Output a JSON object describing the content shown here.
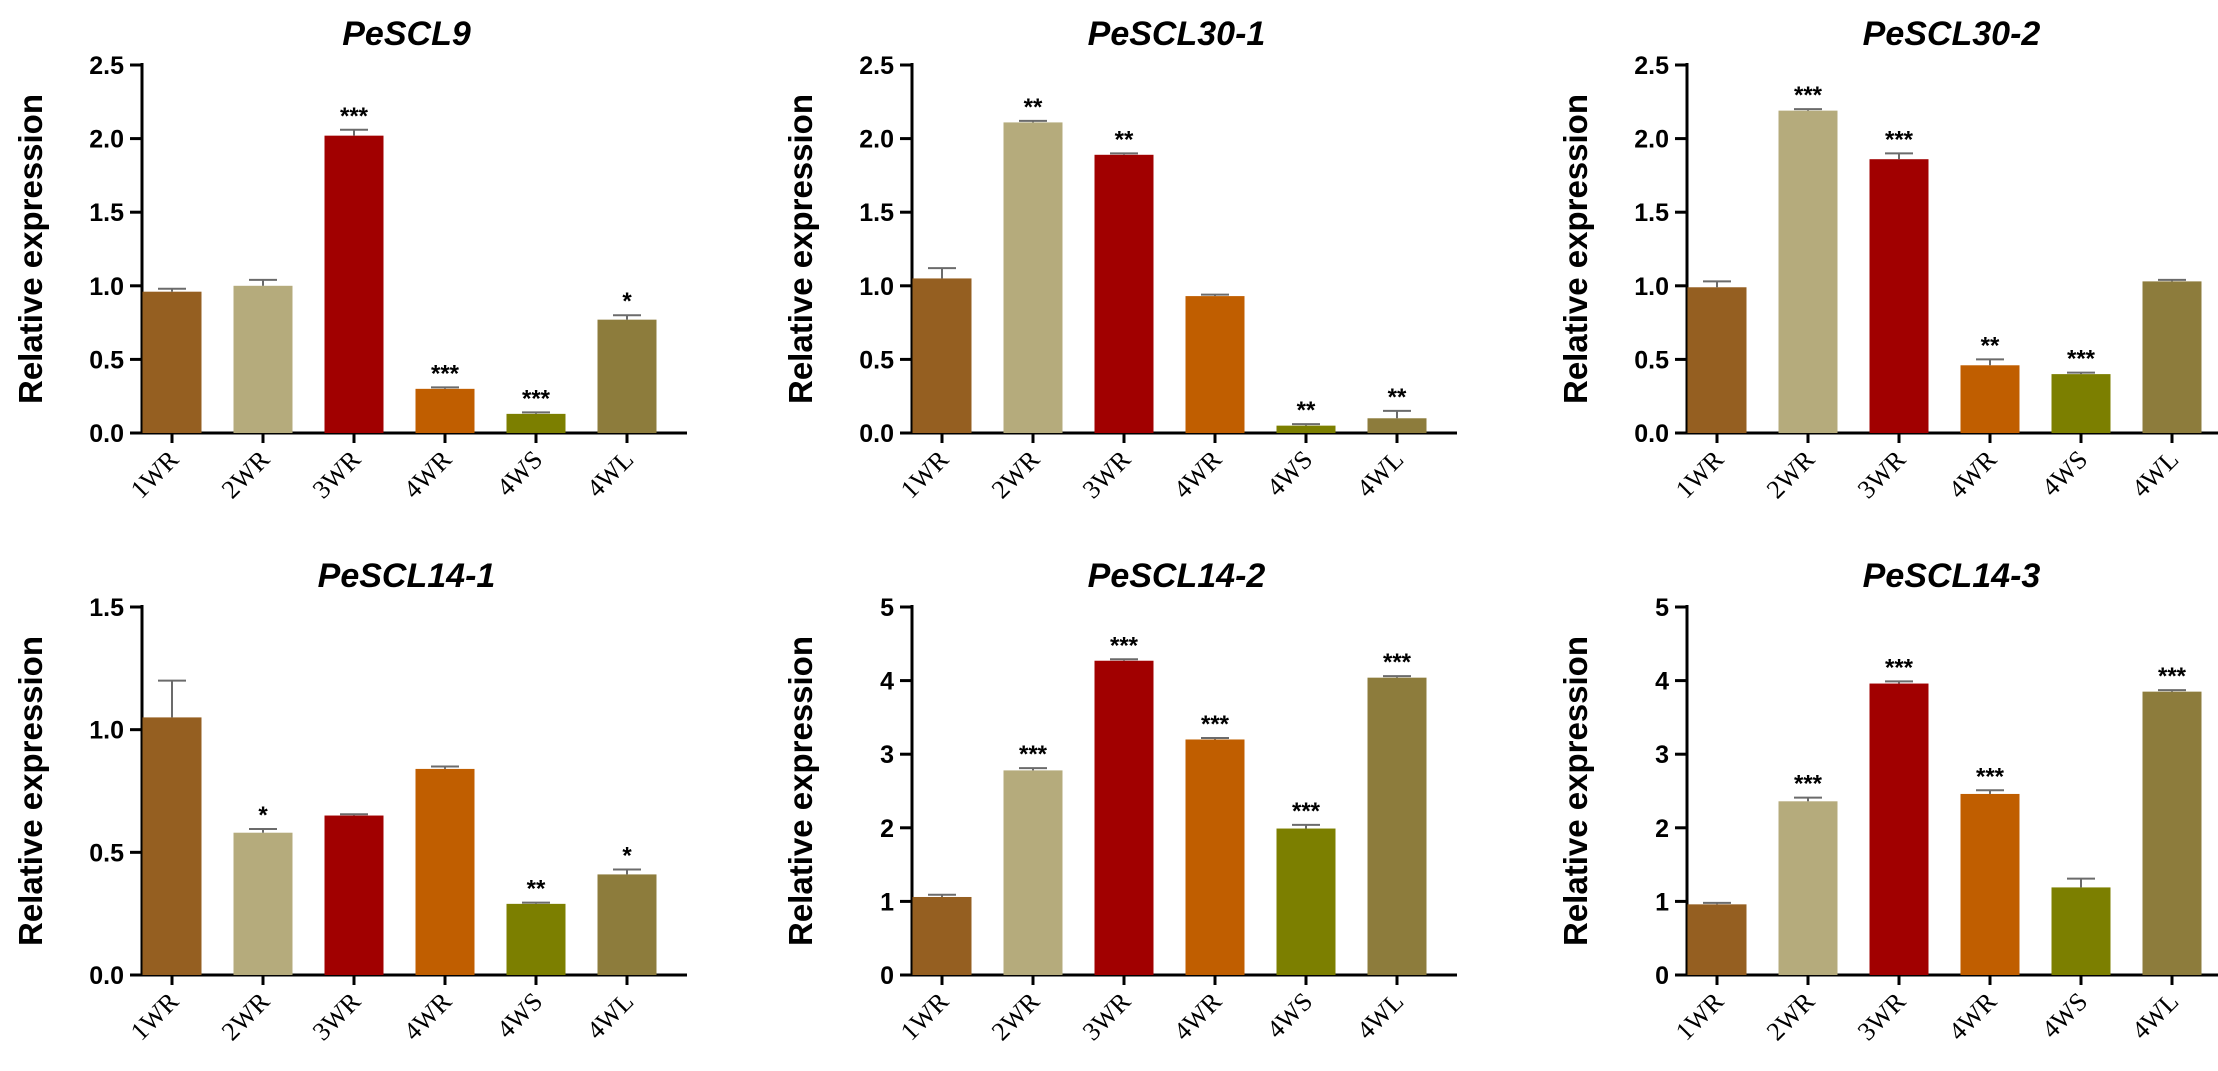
{
  "chart_data": [
    {
      "type": "bar",
      "title": "PeSCL9",
      "ylabel": "Relative expression",
      "xlabel": "",
      "ylim": [
        0,
        2.5
      ],
      "yticks": [
        "0.0",
        "0.5",
        "1.0",
        "1.5",
        "2.0",
        "2.5"
      ],
      "categories": [
        "1WR",
        "2WR",
        "3WR",
        "4WR",
        "4WS",
        "4WL"
      ],
      "values": [
        0.96,
        1.0,
        2.02,
        0.3,
        0.13,
        0.77
      ],
      "errors": [
        0.02,
        0.04,
        0.04,
        0.01,
        0.01,
        0.03
      ],
      "significance": [
        "",
        "",
        "***",
        "***",
        "***",
        "*"
      ]
    },
    {
      "type": "bar",
      "title": "PeSCL30-1",
      "ylabel": "Relative expression",
      "xlabel": "",
      "ylim": [
        0,
        2.5
      ],
      "yticks": [
        "0.0",
        "0.5",
        "1.0",
        "1.5",
        "2.0",
        "2.5"
      ],
      "categories": [
        "1WR",
        "2WR",
        "3WR",
        "4WR",
        "4WS",
        "4WL"
      ],
      "values": [
        1.05,
        2.11,
        1.89,
        0.93,
        0.05,
        0.1
      ],
      "errors": [
        0.07,
        0.01,
        0.01,
        0.01,
        0.01,
        0.05
      ],
      "significance": [
        "",
        "**",
        "**",
        "",
        "**",
        "**"
      ]
    },
    {
      "type": "bar",
      "title": "PeSCL30-2",
      "ylabel": "Relative expression",
      "xlabel": "",
      "ylim": [
        0,
        2.5
      ],
      "yticks": [
        "0.0",
        "0.5",
        "1.0",
        "1.5",
        "2.0",
        "2.5"
      ],
      "categories": [
        "1WR",
        "2WR",
        "3WR",
        "4WR",
        "4WS",
        "4WL"
      ],
      "values": [
        0.99,
        2.19,
        1.86,
        0.46,
        0.4,
        1.03
      ],
      "errors": [
        0.04,
        0.01,
        0.04,
        0.04,
        0.01,
        0.01
      ],
      "significance": [
        "",
        "***",
        "***",
        "**",
        "***",
        ""
      ]
    },
    {
      "type": "bar",
      "title": "PeSCL14-1",
      "ylabel": "Relative expression",
      "xlabel": "",
      "ylim": [
        0,
        1.5
      ],
      "yticks": [
        "0.0",
        "0.5",
        "1.0",
        "1.5"
      ],
      "categories": [
        "1WR",
        "2WR",
        "3WR",
        "4WR",
        "4WS",
        "4WL"
      ],
      "values": [
        1.05,
        0.58,
        0.65,
        0.84,
        0.29,
        0.41
      ],
      "errors": [
        0.15,
        0.015,
        0.005,
        0.01,
        0.005,
        0.02
      ],
      "significance": [
        "",
        "*",
        "",
        "",
        "**",
        "*"
      ]
    },
    {
      "type": "bar",
      "title": "PeSCL14-2",
      "ylabel": "Relative expression",
      "xlabel": "",
      "ylim": [
        0,
        5
      ],
      "yticks": [
        "0",
        "1",
        "2",
        "3",
        "4",
        "5"
      ],
      "categories": [
        "1WR",
        "2WR",
        "3WR",
        "4WR",
        "4WS",
        "4WL"
      ],
      "values": [
        1.06,
        2.78,
        4.27,
        3.2,
        1.99,
        4.04
      ],
      "errors": [
        0.03,
        0.03,
        0.02,
        0.02,
        0.05,
        0.02
      ],
      "significance": [
        "",
        "***",
        "***",
        "***",
        "***",
        "***"
      ]
    },
    {
      "type": "bar",
      "title": "PeSCL14-3",
      "ylabel": "Relative expression",
      "xlabel": "",
      "ylim": [
        0,
        5
      ],
      "yticks": [
        "0",
        "1",
        "2",
        "3",
        "4",
        "5"
      ],
      "categories": [
        "1WR",
        "2WR",
        "3WR",
        "4WR",
        "4WS",
        "4WL"
      ],
      "values": [
        0.96,
        2.36,
        3.96,
        2.46,
        1.19,
        3.85
      ],
      "errors": [
        0.02,
        0.05,
        0.03,
        0.05,
        0.12,
        0.02
      ],
      "significance": [
        "",
        "***",
        "***",
        "***",
        "",
        "***"
      ]
    }
  ],
  "bar_colors": [
    "#955f21",
    "#b5ab7c",
    "#a10000",
    "#c05e00",
    "#7c7f00",
    "#8d7c3c"
  ]
}
